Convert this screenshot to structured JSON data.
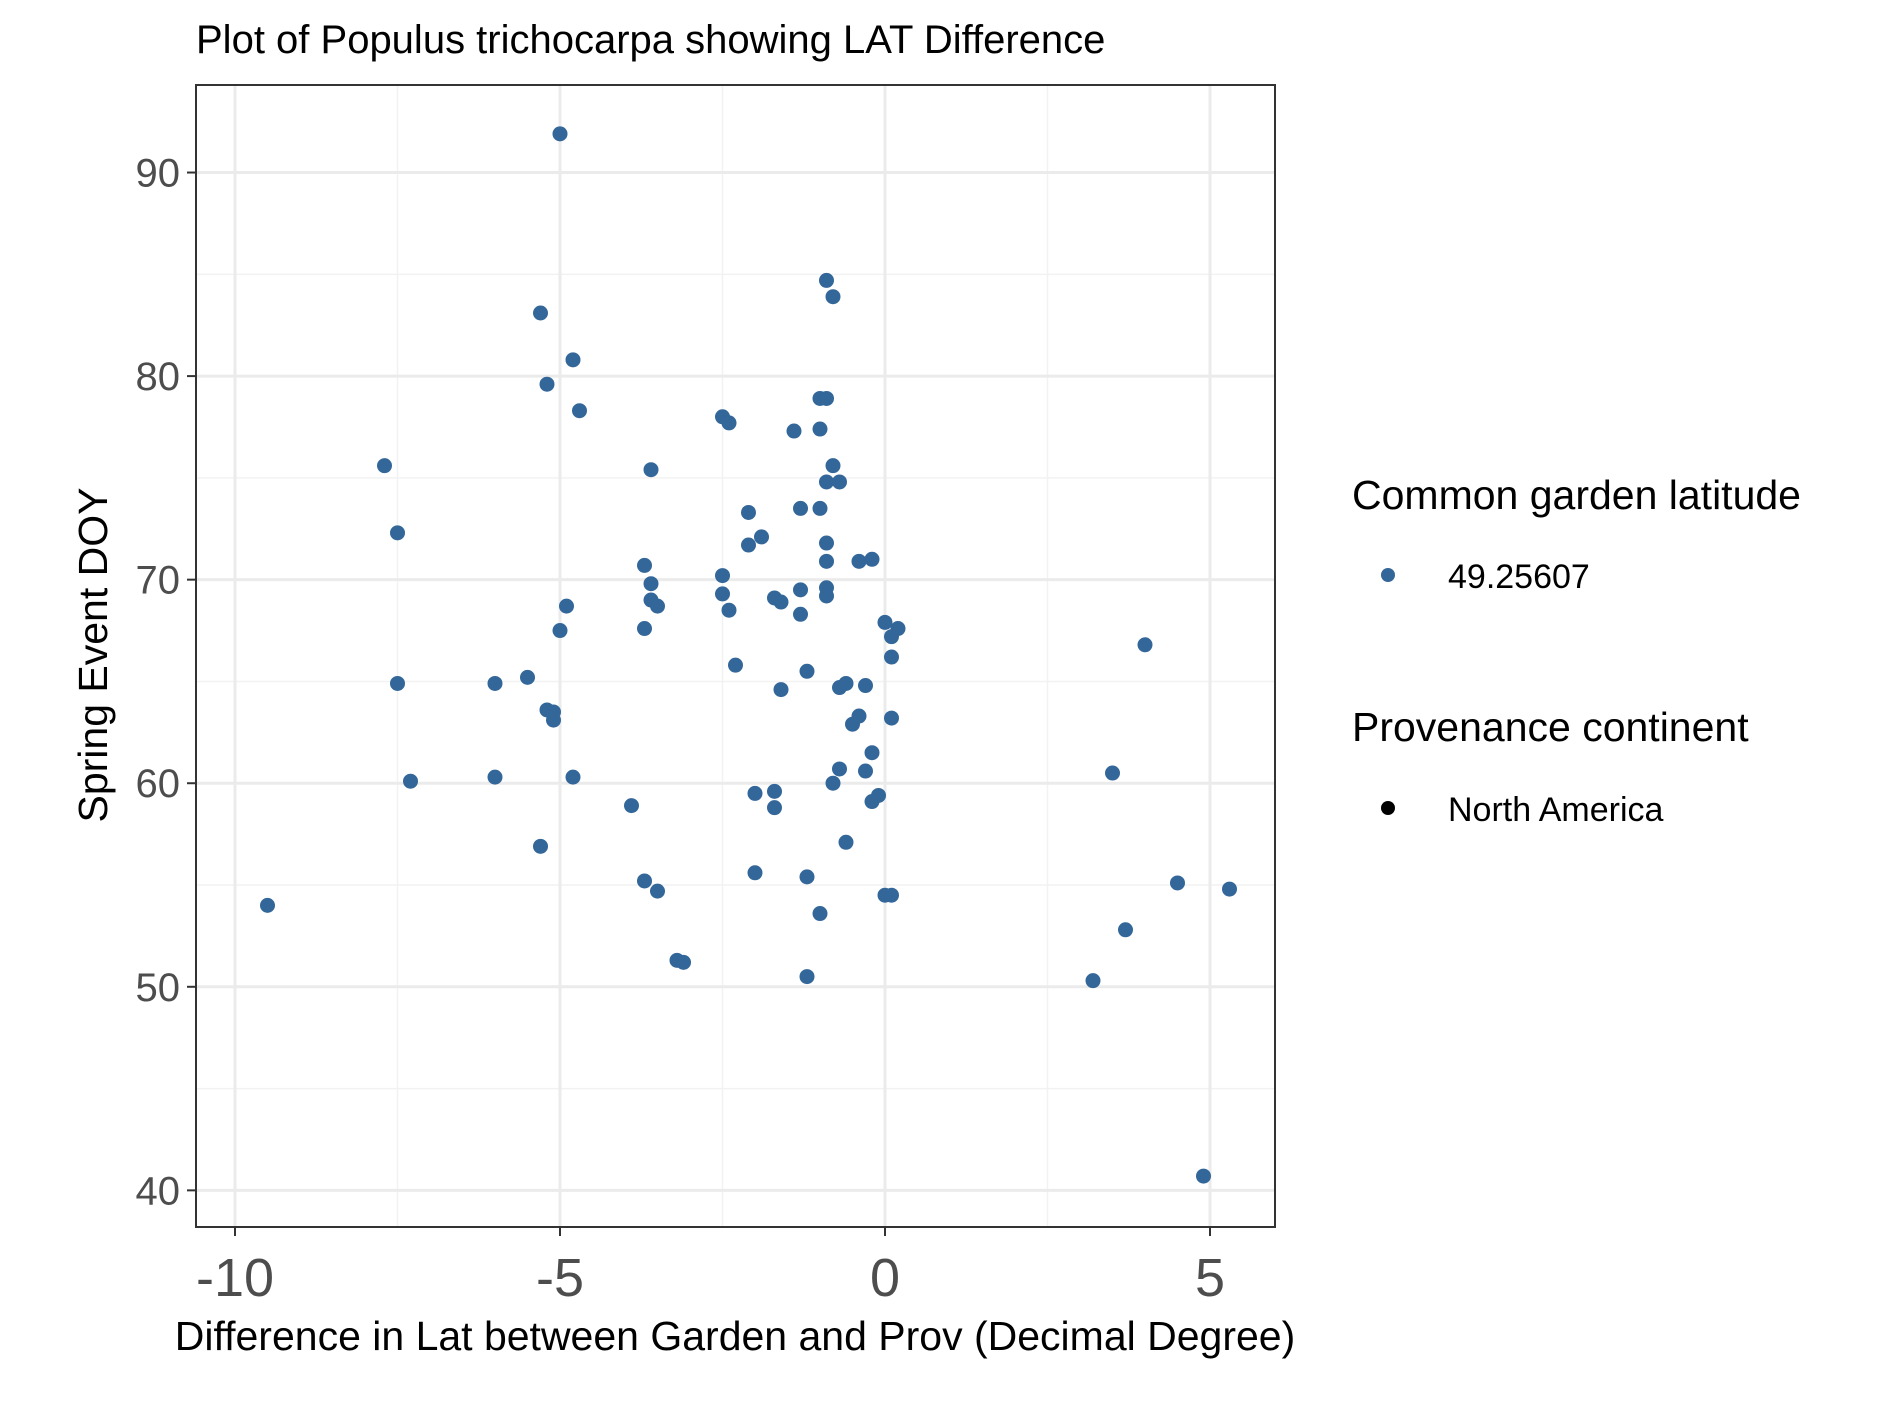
{
  "chart_data": {
    "type": "scatter",
    "title": "Plot of Populus trichocarpa showing LAT Difference",
    "xlabel": "Difference in Lat between Garden and Prov (Decimal Degree)",
    "ylabel": "Spring Event DOY",
    "xlim": [
      -10.6,
      6.0
    ],
    "ylim": [
      38.2,
      94.3
    ],
    "x_ticks": [
      -10,
      -5,
      0,
      5
    ],
    "x_tick_labels": [
      "-10",
      "-5",
      "0",
      "5"
    ],
    "y_ticks": [
      40,
      50,
      60,
      70,
      80,
      90
    ],
    "y_tick_labels": [
      "40",
      "50",
      "60",
      "70",
      "80",
      "90"
    ],
    "grid": true,
    "legend_position": "right",
    "point_color": "#336699",
    "legend": [
      {
        "title": "Common garden latitude",
        "entries": [
          {
            "label": "49.25607",
            "color": "#336699"
          }
        ]
      },
      {
        "title": "Provenance continent",
        "entries": [
          {
            "label": "North America",
            "color": "#000000"
          }
        ]
      }
    ],
    "series": [
      {
        "points": [
          [
            -9.5,
            54.0
          ],
          [
            -7.7,
            75.6
          ],
          [
            -7.5,
            72.3
          ],
          [
            -7.5,
            64.9
          ],
          [
            -7.3,
            60.1
          ],
          [
            -6.0,
            64.9
          ],
          [
            -6.0,
            60.3
          ],
          [
            -5.5,
            65.2
          ],
          [
            -5.3,
            83.1
          ],
          [
            -5.3,
            56.9
          ],
          [
            -5.2,
            79.6
          ],
          [
            -5.2,
            63.6
          ],
          [
            -5.1,
            63.5
          ],
          [
            -5.1,
            63.1
          ],
          [
            -5.0,
            91.9
          ],
          [
            -5.0,
            67.5
          ],
          [
            -4.9,
            68.7
          ],
          [
            -4.8,
            80.8
          ],
          [
            -4.8,
            60.3
          ],
          [
            -4.7,
            78.3
          ],
          [
            -3.9,
            58.9
          ],
          [
            -3.7,
            70.7
          ],
          [
            -3.7,
            67.6
          ],
          [
            -3.7,
            55.2
          ],
          [
            -3.6,
            69.8
          ],
          [
            -3.6,
            69.0
          ],
          [
            -3.6,
            75.4
          ],
          [
            -3.5,
            68.7
          ],
          [
            -3.5,
            54.7
          ],
          [
            -3.2,
            51.3
          ],
          [
            -3.1,
            51.2
          ],
          [
            -2.5,
            70.2
          ],
          [
            -2.5,
            69.3
          ],
          [
            -2.5,
            78.0
          ],
          [
            -2.4,
            77.7
          ],
          [
            -2.4,
            68.5
          ],
          [
            -2.3,
            65.8
          ],
          [
            -2.1,
            73.3
          ],
          [
            -2.1,
            71.7
          ],
          [
            -2.0,
            59.5
          ],
          [
            -2.0,
            55.6
          ],
          [
            -1.9,
            72.1
          ],
          [
            -1.7,
            69.1
          ],
          [
            -1.7,
            59.6
          ],
          [
            -1.7,
            58.8
          ],
          [
            -1.6,
            64.6
          ],
          [
            -1.6,
            68.9
          ],
          [
            -1.4,
            77.3
          ],
          [
            -1.3,
            73.5
          ],
          [
            -1.3,
            68.3
          ],
          [
            -1.3,
            69.5
          ],
          [
            -1.2,
            65.5
          ],
          [
            -1.2,
            55.4
          ],
          [
            -1.2,
            50.5
          ],
          [
            -1.0,
            77.4
          ],
          [
            -1.0,
            73.5
          ],
          [
            -1.0,
            53.6
          ],
          [
            -1.0,
            78.9
          ],
          [
            -0.9,
            78.9
          ],
          [
            -0.9,
            74.8
          ],
          [
            -0.9,
            71.8
          ],
          [
            -0.9,
            70.9
          ],
          [
            -0.9,
            69.6
          ],
          [
            -0.9,
            69.2
          ],
          [
            -0.9,
            84.7
          ],
          [
            -0.8,
            83.9
          ],
          [
            -0.8,
            75.6
          ],
          [
            -0.8,
            60.0
          ],
          [
            -0.7,
            74.8
          ],
          [
            -0.7,
            60.7
          ],
          [
            -0.7,
            64.7
          ],
          [
            -0.6,
            64.9
          ],
          [
            -0.6,
            57.1
          ],
          [
            -0.5,
            62.9
          ],
          [
            -0.4,
            63.3
          ],
          [
            -0.4,
            70.9
          ],
          [
            -0.3,
            64.8
          ],
          [
            -0.3,
            60.6
          ],
          [
            -0.2,
            71.0
          ],
          [
            -0.2,
            59.1
          ],
          [
            -0.2,
            61.5
          ],
          [
            -0.1,
            59.4
          ],
          [
            0.0,
            67.9
          ],
          [
            0.0,
            54.5
          ],
          [
            0.1,
            54.5
          ],
          [
            0.1,
            66.2
          ],
          [
            0.1,
            67.2
          ],
          [
            0.1,
            63.2
          ],
          [
            0.2,
            67.6
          ],
          [
            3.2,
            50.3
          ],
          [
            3.5,
            60.5
          ],
          [
            3.7,
            52.8
          ],
          [
            4.0,
            66.8
          ],
          [
            4.5,
            55.1
          ],
          [
            4.9,
            40.7
          ],
          [
            5.3,
            54.8
          ]
        ]
      }
    ]
  }
}
